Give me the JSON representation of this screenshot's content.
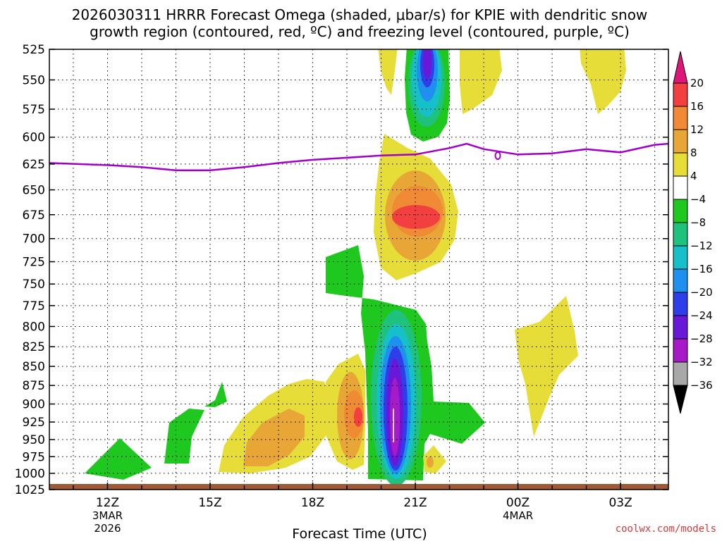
{
  "chart_data": {
    "type": "heatmap",
    "title_line1": "2026030311 HRRR Forecast Omega (shaded, μbar/s) for KPIE with dendritic snow",
    "title_line2": "growth region (contoured, red, ºC) and freezing level (contoured, purple, ºC)",
    "xlabel": "Forecast Time (UTC)",
    "credit": "coolwx.com/models",
    "x_axis": {
      "range_hours": [
        10.3,
        28.4
      ],
      "ticks": [
        {
          "h": 12,
          "label": "12Z",
          "sub1": "3MAR",
          "sub2": "2026"
        },
        {
          "h": 15,
          "label": "15Z"
        },
        {
          "h": 18,
          "label": "18Z"
        },
        {
          "h": 21,
          "label": "21Z"
        },
        {
          "h": 24,
          "label": "00Z",
          "sub1": "4MAR"
        },
        {
          "h": 27,
          "label": "03Z"
        }
      ]
    },
    "y_axis": {
      "range_hPa": [
        525,
        1025
      ],
      "scale": "log-pressure",
      "ticks": [
        "525",
        "550",
        "575",
        "600",
        "625",
        "650",
        "675",
        "700",
        "725",
        "750",
        "775",
        "800",
        "825",
        "850",
        "875",
        "900",
        "925",
        "950",
        "975",
        "1000",
        "1025"
      ]
    },
    "colorbar": {
      "labels": [
        "20",
        "16",
        "12",
        "8",
        "4",
        "−4",
        "−8",
        "−12",
        "−16",
        "−20",
        "−24",
        "−28",
        "−32",
        "−36"
      ],
      "bins": [
        {
          "range": ">20",
          "color": "#e0157a"
        },
        {
          "range": "16 to 20",
          "color": "#f24040"
        },
        {
          "range": "12 to 16",
          "color": "#f08a35"
        },
        {
          "range": "8 to 12",
          "color": "#e8a636"
        },
        {
          "range": "4 to 8",
          "color": "#e6dd39"
        },
        {
          "range": "-4 to 4",
          "color": "#ffffff"
        },
        {
          "range": "-8 to -4",
          "color": "#1ec81e"
        },
        {
          "range": "-12 to -8",
          "color": "#1ec27d"
        },
        {
          "range": "-16 to -12",
          "color": "#16c0c8"
        },
        {
          "range": "-20 to -16",
          "color": "#1f90f0"
        },
        {
          "range": "-24 to -20",
          "color": "#2e3ee8"
        },
        {
          "range": "-28 to -24",
          "color": "#6a18d8"
        },
        {
          "range": "-32 to -28",
          "color": "#a61ac8"
        },
        {
          "range": "-36 to -32",
          "color": "#a8a8a8"
        },
        {
          "range": "<-36",
          "color": "#000000"
        }
      ]
    },
    "omega_features": [
      {
        "name": "upward-core-21z",
        "center_h": 21.0,
        "center_hPa": 915,
        "min_omega": -34,
        "extent_hPa": [
          780,
          1005
        ]
      },
      {
        "name": "upper-upward-22z",
        "center_h": 22.0,
        "center_hPa": 545,
        "min_omega": -28,
        "extent_hPa": [
          525,
          610
        ]
      },
      {
        "name": "sinking-max-21z",
        "center_h": 21.3,
        "center_hPa": 680,
        "max_omega": 18,
        "extent_hPa": [
          600,
          750
        ]
      },
      {
        "name": "sinking-max-20z",
        "center_h": 20.0,
        "center_hPa": 925,
        "max_omega": 17,
        "extent_hPa": [
          860,
          990
        ]
      },
      {
        "name": "sinking-17z",
        "center_h": 17.0,
        "center_hPa": 940,
        "max_omega": 10,
        "extent_hPa": [
          880,
          1000
        ]
      },
      {
        "name": "green-upward-13z",
        "center_h": 13.0,
        "center_hPa": 985,
        "min_omega": -6
      },
      {
        "name": "sinking-02z",
        "center_h": 26.5,
        "center_hPa": 535,
        "max_omega": 6
      }
    ],
    "freezing_level": {
      "label": "0",
      "points": [
        [
          10.3,
          624
        ],
        [
          12,
          626
        ],
        [
          13,
          628
        ],
        [
          14,
          631
        ],
        [
          15,
          631
        ],
        [
          16,
          628
        ],
        [
          17,
          624
        ],
        [
          18,
          621
        ],
        [
          19,
          619
        ],
        [
          20,
          617
        ],
        [
          21,
          616
        ],
        [
          22,
          610
        ],
        [
          22.5,
          606
        ],
        [
          23,
          611
        ],
        [
          24,
          616
        ],
        [
          25,
          615
        ],
        [
          26,
          611
        ],
        [
          27,
          614
        ],
        [
          28,
          607
        ],
        [
          28.4,
          606
        ]
      ]
    }
  }
}
